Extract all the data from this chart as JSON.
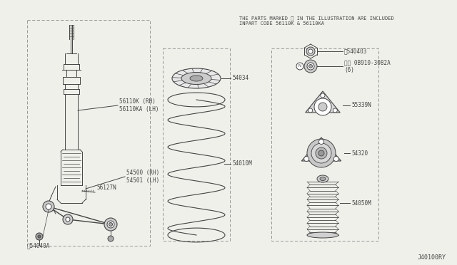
{
  "bg_color": "#f0f0eb",
  "line_color": "#444444",
  "title_text": "THE PARTS MARKED ※ IN THE ILLUSTRATION ARE INCLUDED\nINPART CODE 56110K & 56110KA",
  "part_labels": {
    "56110K_RH": "56110K (RH)\n56110KA (LH)",
    "54500_RH": "54500 (RH)\n54501 (LH)",
    "56127N": "56127N",
    "54040A": "※54040A",
    "54034": "54034",
    "54010M": "54010M",
    "540403": "※540403",
    "0B910": "※Ⓝ 0B910-3082A\n(6)",
    "55339N": "55339N",
    "54320": "54320",
    "54050M": "54050M"
  },
  "diagram_id": "J40100RY",
  "fig_width": 6.4,
  "fig_height": 3.72,
  "dpi": 100
}
